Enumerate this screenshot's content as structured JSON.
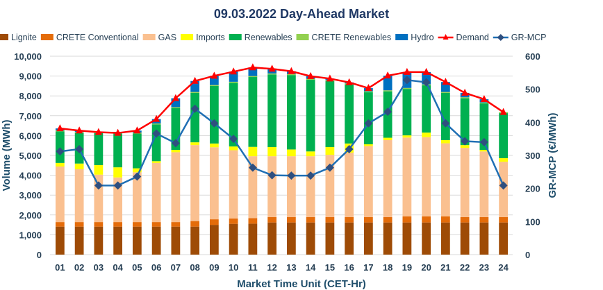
{
  "chart_data": {
    "type": "bar",
    "title": "09.03.2022  Day-Ahead Market",
    "xlabel": "Market Time Unit (CET-Hr)",
    "ylabel": "Volume (MWh)",
    "y2label": "GR-MCP (€/MWh)",
    "ylim": [
      0,
      10000
    ],
    "y2lim": [
      0,
      600
    ],
    "yticks": [
      "0",
      "1,000",
      "2,000",
      "3,000",
      "4,000",
      "5,000",
      "6,000",
      "7,000",
      "8,000",
      "9,000",
      "10,000"
    ],
    "y2ticks": [
      "0",
      "100",
      "200",
      "300",
      "400",
      "500",
      "600"
    ],
    "grid": true,
    "legend_position": "top",
    "categories": [
      "01",
      "02",
      "03",
      "04",
      "05",
      "06",
      "07",
      "08",
      "09",
      "10",
      "11",
      "12",
      "13",
      "14",
      "15",
      "16",
      "17",
      "18",
      "19",
      "20",
      "21",
      "22",
      "23",
      "24"
    ],
    "stacked_series": [
      {
        "name": "Lignite",
        "color": "#9E4B06",
        "values": [
          1410,
          1410,
          1410,
          1410,
          1410,
          1410,
          1410,
          1410,
          1500,
          1550,
          1560,
          1620,
          1620,
          1620,
          1620,
          1620,
          1620,
          1620,
          1620,
          1620,
          1620,
          1620,
          1620,
          1620
        ]
      },
      {
        "name": "CRETE Conventional",
        "color": "#E46C0A",
        "values": [
          230,
          230,
          230,
          230,
          230,
          230,
          230,
          280,
          280,
          270,
          280,
          270,
          270,
          270,
          270,
          270,
          270,
          270,
          310,
          310,
          310,
          270,
          270,
          270
        ]
      },
      {
        "name": "GAS",
        "color": "#FAC090",
        "values": [
          2800,
          2660,
          2390,
          2250,
          2510,
          2980,
          3520,
          3830,
          3630,
          3440,
          3120,
          3070,
          3070,
          3070,
          3140,
          3250,
          3580,
          3880,
          3970,
          3990,
          3680,
          3490,
          3310,
          2790
        ]
      },
      {
        "name": "Imports",
        "color": "#FFFF00",
        "values": [
          180,
          290,
          480,
          510,
          200,
          90,
          120,
          140,
          190,
          190,
          470,
          460,
          340,
          240,
          390,
          460,
          90,
          120,
          110,
          230,
          160,
          140,
          80,
          180
        ]
      },
      {
        "name": "Renewables",
        "color": "#00B050",
        "values": [
          1590,
          1540,
          1610,
          1700,
          1750,
          1850,
          2100,
          2490,
          2900,
          3210,
          3520,
          3660,
          3750,
          3610,
          3320,
          2980,
          2620,
          2340,
          2340,
          2380,
          2380,
          2360,
          2340,
          2270
        ]
      },
      {
        "name": "CRETE Renewables",
        "color": "#92D050",
        "values": [
          50,
          50,
          50,
          50,
          50,
          50,
          50,
          50,
          50,
          50,
          50,
          50,
          50,
          50,
          50,
          50,
          50,
          50,
          50,
          50,
          50,
          50,
          50,
          50
        ]
      },
      {
        "name": "Hydro",
        "color": "#0070C0",
        "values": [
          100,
          70,
          0,
          30,
          100,
          220,
          450,
          550,
          460,
          510,
          430,
          230,
          140,
          130,
          80,
          50,
          160,
          740,
          800,
          620,
          500,
          220,
          160,
          0
        ]
      }
    ],
    "line_series": [
      {
        "name": "Demand",
        "axis": "left",
        "color": "#FF0000",
        "marker": "triangle",
        "values": [
          6360,
          6250,
          6170,
          6130,
          6250,
          6830,
          7880,
          8750,
          9010,
          9220,
          9430,
          9360,
          9240,
          8990,
          8870,
          8680,
          8390,
          9020,
          9200,
          9200,
          8700,
          8150,
          7830,
          7180
        ]
      },
      {
        "name": "GR-MCP",
        "axis": "right",
        "color": "#1F6FB4",
        "marker": "diamond",
        "values": [
          312,
          319,
          209,
          209,
          236,
          366,
          337,
          441,
          397,
          350,
          263,
          240,
          239,
          239,
          263,
          319,
          397,
          432,
          528,
          521,
          397,
          343,
          340,
          209
        ]
      }
    ]
  }
}
